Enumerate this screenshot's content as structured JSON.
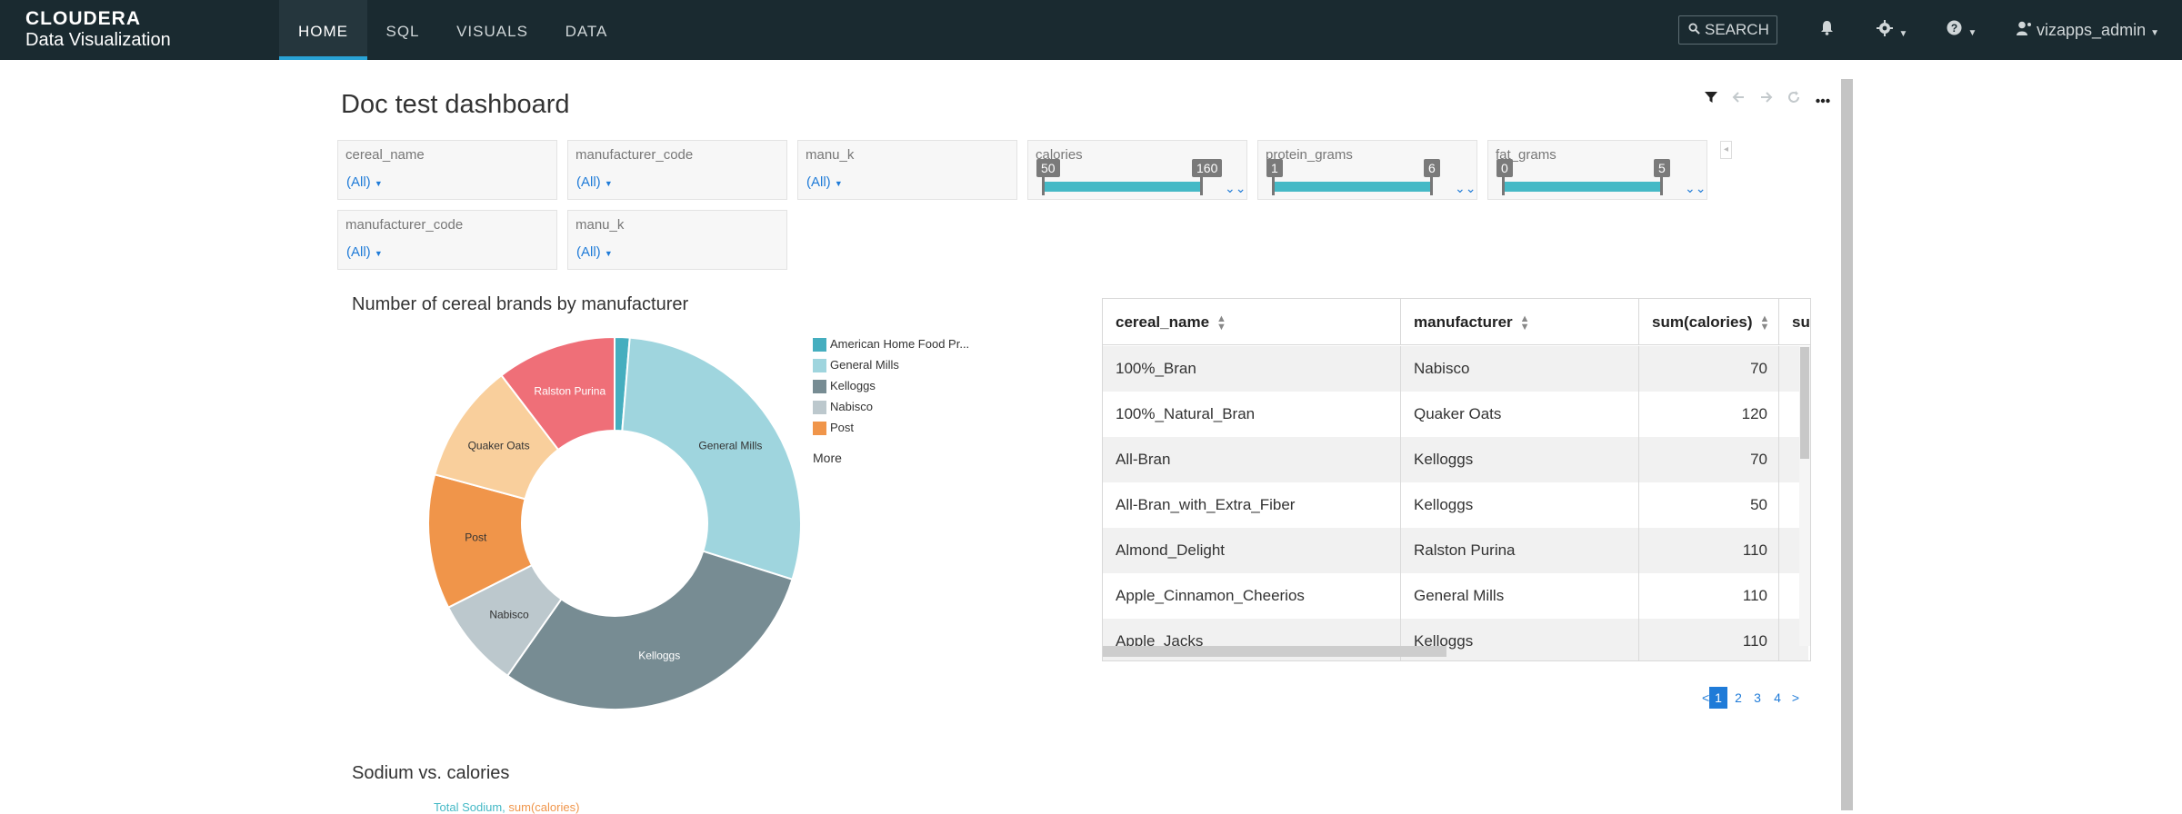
{
  "app": {
    "brand_line1": "CLOUDERA",
    "brand_line2": "Data Visualization"
  },
  "nav": {
    "tabs": [
      {
        "label": "HOME",
        "active": true
      },
      {
        "label": "SQL",
        "active": false
      },
      {
        "label": "VISUALS",
        "active": false
      },
      {
        "label": "DATA",
        "active": false
      }
    ],
    "search_label": "SEARCH",
    "search_icon": "search-icon",
    "bell_icon": "bell-icon",
    "settings_icon": "gear-icon",
    "help_icon": "help-icon",
    "user_name": "vizapps_admin"
  },
  "dashboard": {
    "title": "Doc test dashboard",
    "toolbar_icons": [
      "filter-icon",
      "undo-icon",
      "redo-icon",
      "refresh-icon",
      "more-icon"
    ]
  },
  "filters": [
    {
      "label": "cereal_name",
      "value": "(All)"
    },
    {
      "label": "manufacturer_code",
      "value": "(All)"
    },
    {
      "label": "manu_k",
      "value": "(All)"
    },
    {
      "label": "calories",
      "min": "50",
      "max": "160"
    },
    {
      "label": "protein_grams",
      "min": "1",
      "max": "6"
    },
    {
      "label": "fat_grams",
      "min": "0",
      "max": "5"
    },
    {
      "label": "manufacturer_code",
      "value": "(All)"
    },
    {
      "label": "manu_k",
      "value": "(All)"
    }
  ],
  "donut_chart": {
    "title": "Number of cereal brands by manufacturer",
    "legend": [
      {
        "name": "American Home Food Pr...",
        "color": "#45aebf"
      },
      {
        "name": "General Mills",
        "color": "#9fd5de"
      },
      {
        "name": "Kelloggs",
        "color": "#778c93"
      },
      {
        "name": "Nabisco",
        "color": "#bcc8cd"
      },
      {
        "name": "Post",
        "color": "#f0954a"
      }
    ],
    "legend_more": "More"
  },
  "chart_data": {
    "type": "pie",
    "title": "Number of cereal brands by manufacturer",
    "categories": [
      "American Home Food Products",
      "General Mills",
      "Kelloggs",
      "Nabisco",
      "Post",
      "Quaker Oats",
      "Ralston Purina"
    ],
    "values": [
      1,
      22,
      23,
      6,
      9,
      8,
      8
    ],
    "labels_shown": [
      "",
      "General Mills",
      "Kelloggs",
      "Nabisco",
      "Post",
      "Quaker Oats",
      "Ralston Purina"
    ],
    "colors": [
      "#45aebf",
      "#9fd5de",
      "#778c93",
      "#bcc8cd",
      "#f0954a",
      "#f9cf9c",
      "#ef6f78"
    ],
    "label_colors": [
      "#333333",
      "#333333",
      "#ffffff",
      "#333333",
      "#333333",
      "#333333",
      "#ffffff"
    ],
    "donut": true
  },
  "table": {
    "columns": [
      "cereal_name",
      "manufacturer",
      "sum(calories)",
      "sum"
    ],
    "rows": [
      [
        "100%_Bran",
        "Nabisco",
        "70"
      ],
      [
        "100%_Natural_Bran",
        "Quaker Oats",
        "120"
      ],
      [
        "All-Bran",
        "Kelloggs",
        "70"
      ],
      [
        "All-Bran_with_Extra_Fiber",
        "Kelloggs",
        "50"
      ],
      [
        "Almond_Delight",
        "Ralston Purina",
        "110"
      ],
      [
        "Apple_Cinnamon_Cheerios",
        "General Mills",
        "110"
      ],
      [
        "Apple_Jacks",
        "Kelloggs",
        "110"
      ]
    ],
    "pager": {
      "prev": "<",
      "pages": [
        "1",
        "2",
        "3",
        "4"
      ],
      "current": "1",
      "next": ">"
    }
  },
  "chart2": {
    "title": "Sodium vs. calories",
    "legend_series1": "Total Sodium,",
    "legend_series2": "sum(calories)"
  }
}
